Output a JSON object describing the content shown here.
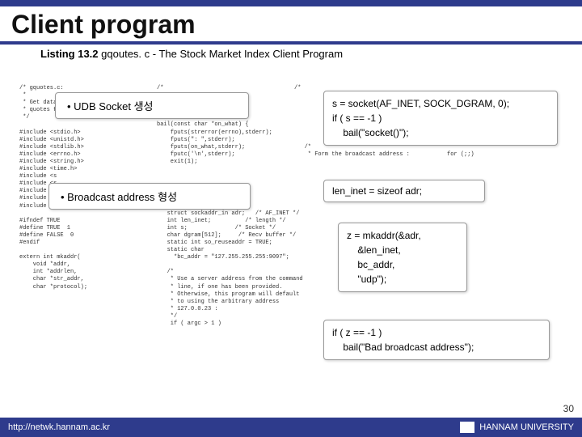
{
  "title": "Client program",
  "listing_label": "Listing 13.2",
  "listing_text": "gqoutes. c - The Stock Market Index Client Program",
  "code_col1": "/* gquotes.c:\n *\n * Get datag\n * quotes fr\n */\n\n#include <stdio.h>\n#include <unistd.h>\n#include <stdlib.h>\n#include <errno.h>\n#include <string.h>\n#include <time.h>\n#include <s\n#include <s\n#include <s\n#include <n\n#include <arpa/inet.h>\n\n#ifndef TRUE\n#define TRUE  1\n#define FALSE  0\n#endif\n\nextern int mkaddr(\n    void *addr,\n    int *addrlen,\n    char *str_addr,\n    char *protocol);",
  "code_col2": "/*\n\n\n\n\nbail(const char *on_what) {\n    fputs(strerror(errno),stderr);\n    fputs(\": \",stderr);\n    fputs(on_what,stderr);\n    fputc('\\n',stderr);\n    exit(1);\n\n\n\n\n\n   int x;\n   struct sockaddr_in adr;   /* AF_INET */\n   int len_inet;          /* length */\n   int s;              /* Socket */\n   char dgram[512];     /* Recv buffer */\n   static int so_reuseaddr = TRUE;\n   static char\n     *bc_addr = \"127.255.255.255:9097\";\n\n   /*\n    * Use a server address from the command\n    * line, if one has been provided.\n    * Otherwise, this program will default\n    * to using the arbitrary address\n    * 127.0.0.23 :\n    */\n    if ( argc > 1 )",
  "code_col3": "/*\n                                                                 s:\n\n\n\n\n\n                                             bail(\"bind(2)\");\n   /*\n    * Form the broadcast address :           for (;;)\n\n\n\n\n\n\n\n\n\n\n\n\n                                           /*",
  "callout1": "• UDB Socket 생성",
  "callout2": "• Broadcast address 형성",
  "callout_code1": "s = socket(AF_INET, SOCK_DGRAM, 0);\nif ( s == -1 )\n    bail(\"socket()\");",
  "callout_code2": "len_inet = sizeof adr;",
  "callout_code3": "z = mkaddr(&adr,\n    &len_inet,\n    bc_addr,\n    \"udp\");",
  "callout_code4": "if ( z == -1 )\n    bail(\"Bad broadcast address\");",
  "footer_url": "http://netwk.hannam.ac.kr",
  "footer_uni": "HANNAM UNIVERSITY",
  "page_num": "30"
}
